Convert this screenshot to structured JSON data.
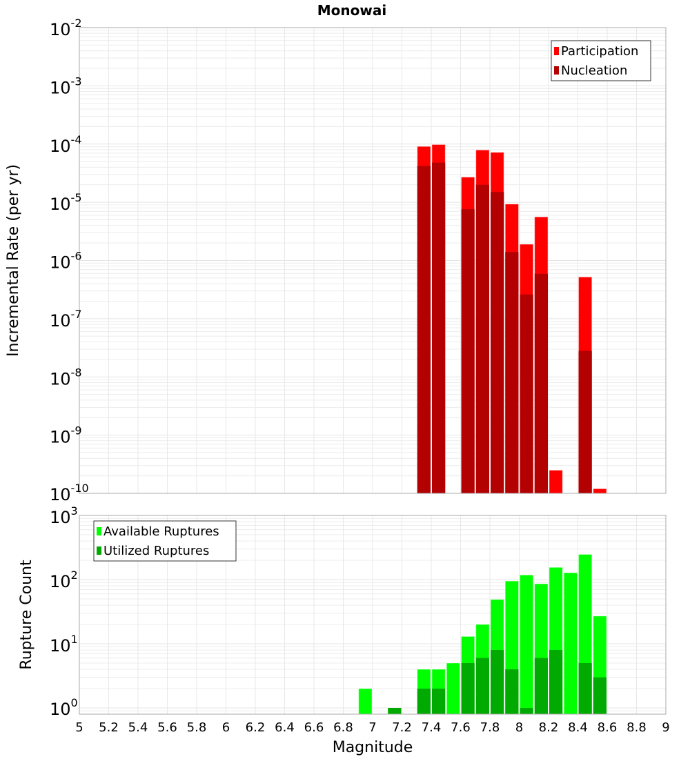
{
  "chart_data": [
    {
      "type": "bar",
      "title": "Monowai",
      "xlabel": "Magnitude",
      "ylabel": "Incremental Rate (per yr)",
      "yscale": "log",
      "ylim": [
        1e-10,
        0.01
      ],
      "xlim": [
        5,
        9
      ],
      "grid": true,
      "legend_position": "top-right",
      "y_ticks": [
        {
          "base": "10",
          "exp": "-2"
        },
        {
          "base": "10",
          "exp": "-3"
        },
        {
          "base": "10",
          "exp": "-4"
        },
        {
          "base": "10",
          "exp": "-5"
        },
        {
          "base": "10",
          "exp": "-6"
        },
        {
          "base": "10",
          "exp": "-7"
        },
        {
          "base": "10",
          "exp": "-8"
        },
        {
          "base": "10",
          "exp": "-9"
        },
        {
          "base": "10",
          "exp": "-10"
        }
      ],
      "x": [
        7.35,
        7.45,
        7.65,
        7.75,
        7.85,
        7.95,
        8.05,
        8.15,
        8.25,
        8.45,
        8.55
      ],
      "series": [
        {
          "name": "Participation",
          "color": "#ff0000",
          "values": [
            9.1e-05,
            9.8e-05,
            2.7e-05,
            7.9e-05,
            7.2e-05,
            9.3e-06,
            1.9e-06,
            5.6e-06,
            2.5e-10,
            5.2e-07,
            1.2e-10
          ]
        },
        {
          "name": "Nucleation",
          "color": "#b30000",
          "values": [
            4.2e-05,
            4.8e-05,
            7.6e-06,
            2e-05,
            1.5e-05,
            1.4e-06,
            2.6e-07,
            5.9e-07,
            null,
            2.8e-08,
            null
          ]
        }
      ]
    },
    {
      "type": "bar",
      "xlabel": "Magnitude",
      "ylabel": "Rupture Count",
      "yscale": "log",
      "ylim": [
        0.8,
        1000
      ],
      "xlim": [
        5,
        9
      ],
      "grid": true,
      "legend_position": "top-left",
      "y_ticks": [
        {
          "base": "10",
          "exp": "3"
        },
        {
          "base": "10",
          "exp": "2"
        },
        {
          "base": "10",
          "exp": "1"
        },
        {
          "base": "10",
          "exp": "0"
        }
      ],
      "x_ticks": [
        "5",
        "5.2",
        "5.4",
        "5.6",
        "5.8",
        "6",
        "6.2",
        "6.4",
        "6.6",
        "6.8",
        "7",
        "7.2",
        "7.4",
        "7.6",
        "7.8",
        "8",
        "8.2",
        "8.4",
        "8.6",
        "8.8",
        "9"
      ],
      "x": [
        6.95,
        7.15,
        7.35,
        7.45,
        7.55,
        7.65,
        7.75,
        7.85,
        7.95,
        8.05,
        8.15,
        8.25,
        8.35,
        8.45,
        8.55
      ],
      "series": [
        {
          "name": "Available Ruptures",
          "color": "#00ff00",
          "values": [
            2,
            1,
            4,
            4,
            5,
            13,
            20,
            49,
            95,
            118,
            86,
            155,
            128,
            247,
            27
          ]
        },
        {
          "name": "Utilized Ruptures",
          "color": "#00aa00",
          "values": [
            null,
            1,
            2,
            2,
            null,
            5,
            6,
            8,
            4,
            1,
            6,
            8,
            null,
            5,
            3
          ]
        }
      ]
    }
  ]
}
